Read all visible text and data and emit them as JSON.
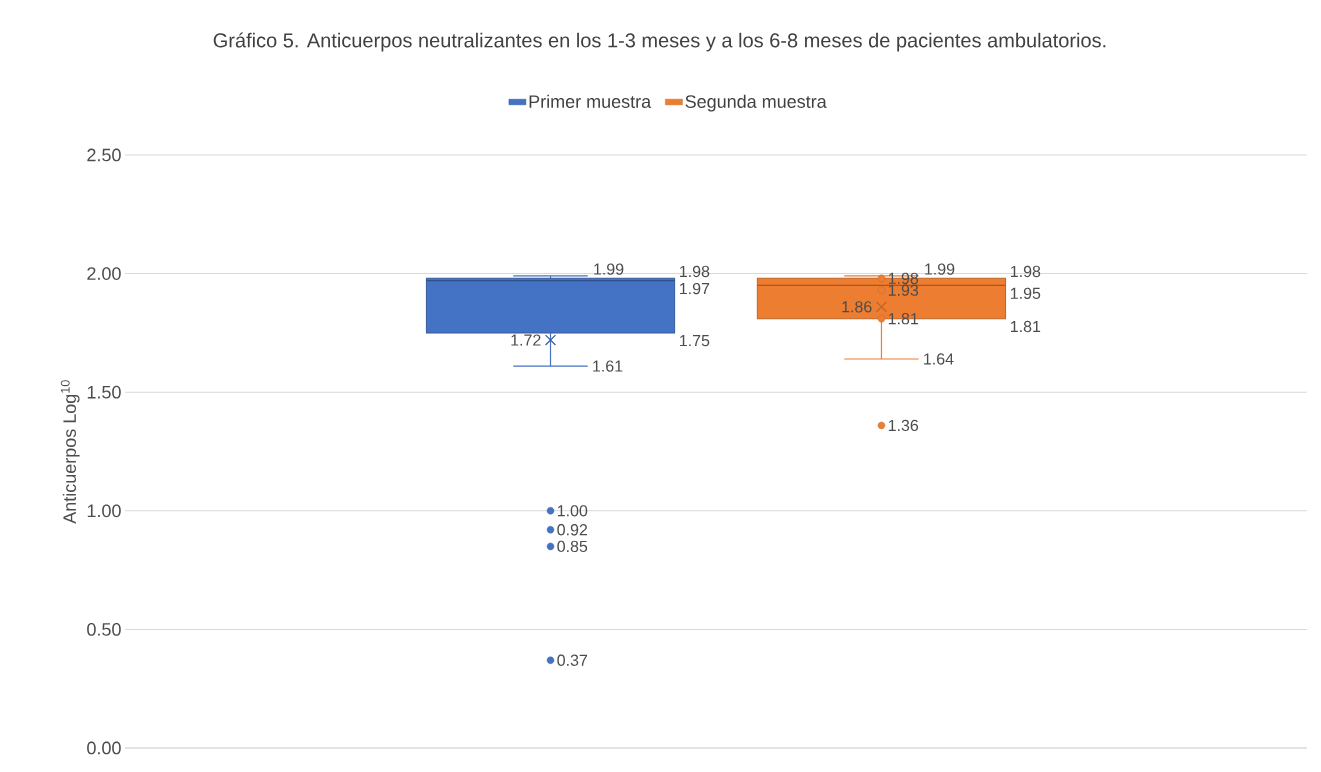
{
  "chart_data": {
    "type": "box",
    "title": "Gráfico 5. Anticuerpos neutralizantes en los 1-3 meses y a los 6-8 meses de pacientes ambulatorios.",
    "ylabel": "Anticuerpos Log$^{10}$",
    "categories": [
      null
    ],
    "series": [
      {
        "name": "Primer muestra",
        "color": "#4472c4",
        "boxes": [
          {
            "low": 1.61,
            "q1": 1.75,
            "median": 1.97,
            "q3": 1.98,
            "high": 1.99,
            "mean": 1.72,
            "outliers": [
              1.0,
              0.92,
              0.85,
              0.37
            ]
          }
        ]
      },
      {
        "name": "Segunda muestra",
        "color": "#ed7d31",
        "boxes": [
          {
            "low": 1.64,
            "q1": 1.81,
            "median": 1.95,
            "q3": 1.98,
            "high": 1.99,
            "mean": 1.86,
            "outliers": [
              1.98,
              1.93,
              1.81,
              1.36
            ]
          }
        ]
      }
    ],
    "annotations": [
      "1.99",
      "1.61",
      "1.98",
      "1.97",
      "1.75",
      "1.72",
      "1.00",
      "0.92",
      "0.85",
      "0.37",
      "1.99",
      "1.64",
      "1.98",
      "1.95",
      "1.81",
      "1.86",
      "1.98",
      "1.93",
      "1.81",
      "1.36"
    ],
    "data_labels": true,
    "ylim": [
      0,
      2.5
    ],
    "yticks": [
      {
        "value": 0,
        "label": "0.00"
      },
      {
        "value": 0.5,
        "label": "0.50"
      },
      {
        "value": 1,
        "label": "1.00"
      },
      {
        "value": 1.5,
        "label": "1.50"
      },
      {
        "value": 2,
        "label": "2.00"
      },
      {
        "value": 2.5,
        "label": "2.50"
      }
    ],
    "grid": "y",
    "legend": "top",
    "tick_labels": "y"
  }
}
